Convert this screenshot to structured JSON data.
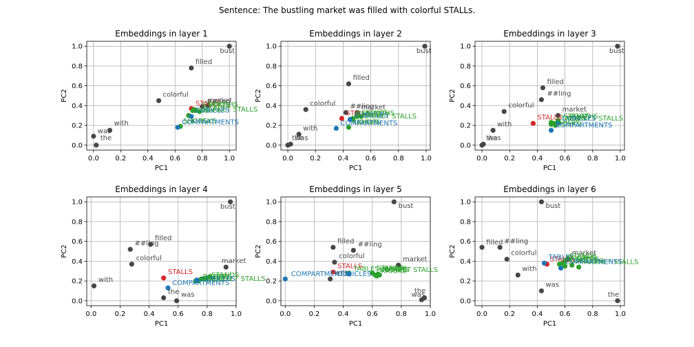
{
  "suptitle": "Sentence: The bustling market was filled with colorful STALLs.",
  "colors": {
    "token": "#474747",
    "target": "#d62728",
    "synonym": "#2ca02c",
    "related": "#1f77b4"
  },
  "chart_data": [
    {
      "type": "scatter",
      "title": "Embeddings in layer 1",
      "xlabel": "PC1",
      "ylabel": "PC2",
      "xlim": [
        -0.05,
        1.05
      ],
      "ylim": [
        -0.05,
        1.05
      ],
      "grid": true,
      "xticks": [
        "0.0",
        "0.2",
        "0.4",
        "0.6",
        "0.8",
        "1.0"
      ],
      "yticks": [
        "0.0",
        "0.2",
        "0.4",
        "0.6",
        "0.8",
        "1.0"
      ],
      "points": [
        {
          "label": "the",
          "x": 0.02,
          "y": 0.0,
          "group": "token",
          "lx": 0.05,
          "ly": 0.05
        },
        {
          "label": "was",
          "x": 0.0,
          "y": 0.09,
          "group": "token",
          "lx": 0.03,
          "ly": 0.12
        },
        {
          "label": "with",
          "x": 0.12,
          "y": 0.15,
          "group": "token",
          "lx": 0.15,
          "ly": 0.2
        },
        {
          "label": "colorful",
          "x": 0.48,
          "y": 0.45,
          "group": "token",
          "lx": 0.51,
          "ly": 0.49
        },
        {
          "label": "filled",
          "x": 0.72,
          "y": 0.78,
          "group": "token",
          "lx": 0.75,
          "ly": 0.82
        },
        {
          "label": "bust",
          "x": 1.0,
          "y": 1.0,
          "group": "token",
          "lx": 0.93,
          "ly": 0.93
        },
        {
          "label": "market",
          "x": 0.84,
          "y": 0.4,
          "group": "token",
          "lx": 0.84,
          "ly": 0.43
        },
        {
          "label": "##ling",
          "x": 0.8,
          "y": 0.39,
          "group": "token",
          "lx": 0.83,
          "ly": 0.42
        },
        {
          "label": "STALLS",
          "x": 0.72,
          "y": 0.37,
          "group": "target",
          "lx": 0.75,
          "ly": 0.4
        },
        {
          "label": "TABLES",
          "x": 0.75,
          "y": 0.35,
          "group": "synonym",
          "lx": 0.75,
          "ly": 0.33
        },
        {
          "label": "STANDS",
          "x": 0.74,
          "y": 0.36,
          "group": "synonym",
          "lx": 0.8,
          "ly": 0.39
        },
        {
          "label": "BOOTHS",
          "x": 0.73,
          "y": 0.35,
          "group": "synonym",
          "lx": 0.85,
          "ly": 0.39
        },
        {
          "label": "MARKET STALLS",
          "x": 0.78,
          "y": 0.34,
          "group": "synonym",
          "lx": 0.8,
          "ly": 0.34
        },
        {
          "label": "KIOSKS",
          "x": 0.7,
          "y": 0.3,
          "group": "synonym",
          "lx": 0.72,
          "ly": 0.22
        },
        {
          "label": "SHOPS",
          "x": 0.64,
          "y": 0.19,
          "group": "synonym",
          "lx": 0.66,
          "ly": 0.22
        },
        {
          "label": "CUBICLES",
          "x": 0.72,
          "y": 0.29,
          "group": "related",
          "lx": 0.75,
          "ly": 0.33
        },
        {
          "label": "COMPARTMENTS",
          "x": 0.62,
          "y": 0.18,
          "group": "related",
          "lx": 0.65,
          "ly": 0.21
        }
      ]
    },
    {
      "type": "scatter",
      "title": "Embeddings in layer 2",
      "xlabel": "PC1",
      "ylabel": "PC2",
      "xlim": [
        -0.05,
        1.03
      ],
      "ylim": [
        -0.05,
        1.05
      ],
      "grid": true,
      "xticks": [
        "0.0",
        "0.2",
        "0.4",
        "0.6",
        "0.8",
        "1.0"
      ],
      "yticks": [
        "0.0",
        "0.2",
        "0.4",
        "0.6",
        "0.8",
        "1.0"
      ],
      "points": [
        {
          "label": "the",
          "x": 0.0,
          "y": 0.0,
          "group": "token",
          "lx": 0.03,
          "ly": 0.05
        },
        {
          "label": "was",
          "x": 0.02,
          "y": 0.01,
          "group": "token",
          "lx": 0.05,
          "ly": 0.05
        },
        {
          "label": "with",
          "x": 0.08,
          "y": 0.11,
          "group": "token",
          "lx": 0.11,
          "ly": 0.15
        },
        {
          "label": "colorful",
          "x": 0.13,
          "y": 0.36,
          "group": "token",
          "lx": 0.16,
          "ly": 0.4
        },
        {
          "label": "filled",
          "x": 0.44,
          "y": 0.62,
          "group": "token",
          "lx": 0.47,
          "ly": 0.66
        },
        {
          "label": "bust",
          "x": 0.99,
          "y": 1.0,
          "group": "token",
          "lx": 0.93,
          "ly": 0.93
        },
        {
          "label": "market",
          "x": 0.5,
          "y": 0.33,
          "group": "token",
          "lx": 0.53,
          "ly": 0.36
        },
        {
          "label": "##ling",
          "x": 0.42,
          "y": 0.33,
          "group": "token",
          "lx": 0.45,
          "ly": 0.37
        },
        {
          "label": "STALLS",
          "x": 0.39,
          "y": 0.27,
          "group": "target",
          "lx": 0.42,
          "ly": 0.3
        },
        {
          "label": "TABLES",
          "x": 0.47,
          "y": 0.27,
          "group": "synonym",
          "lx": 0.5,
          "ly": 0.29
        },
        {
          "label": "STANDS",
          "x": 0.5,
          "y": 0.32,
          "group": "synonym",
          "lx": 0.53,
          "ly": 0.3
        },
        {
          "label": "BOOTHS",
          "x": 0.53,
          "y": 0.29,
          "group": "synonym",
          "lx": 0.56,
          "ly": 0.3
        },
        {
          "label": "MARKET STALLS",
          "x": 0.5,
          "y": 0.29,
          "group": "synonym",
          "lx": 0.53,
          "ly": 0.27
        },
        {
          "label": "KIOSKS",
          "x": 0.44,
          "y": 0.18,
          "group": "synonym",
          "lx": 0.47,
          "ly": 0.21
        },
        {
          "label": "SHOPS",
          "x": 0.47,
          "y": 0.26,
          "group": "synonym",
          "lx": 0.5,
          "ly": 0.21
        },
        {
          "label": "CUBICLES",
          "x": 0.45,
          "y": 0.26,
          "group": "related",
          "lx": 0.48,
          "ly": 0.28
        },
        {
          "label": "COMPARTMENTS",
          "x": 0.35,
          "y": 0.17,
          "group": "related",
          "lx": 0.38,
          "ly": 0.2
        }
      ]
    },
    {
      "type": "scatter",
      "title": "Embeddings in layer 3",
      "xlabel": "PC1",
      "ylabel": "PC2",
      "xlim": [
        -0.05,
        1.03
      ],
      "ylim": [
        -0.05,
        1.05
      ],
      "grid": true,
      "xticks": [
        "0.0",
        "0.2",
        "0.4",
        "0.6",
        "0.8",
        "1.0"
      ],
      "yticks": [
        "0.0",
        "0.2",
        "0.4",
        "0.6",
        "0.8",
        "1.0"
      ],
      "points": [
        {
          "label": "the",
          "x": 0.0,
          "y": 0.0,
          "group": "token",
          "lx": 0.03,
          "ly": 0.05
        },
        {
          "label": "was",
          "x": 0.01,
          "y": 0.01,
          "group": "token",
          "lx": 0.04,
          "ly": 0.05
        },
        {
          "label": "with",
          "x": 0.08,
          "y": 0.15,
          "group": "token",
          "lx": 0.11,
          "ly": 0.19
        },
        {
          "label": "colorful",
          "x": 0.16,
          "y": 0.34,
          "group": "token",
          "lx": 0.19,
          "ly": 0.38
        },
        {
          "label": "filled",
          "x": 0.44,
          "y": 0.58,
          "group": "token",
          "lx": 0.47,
          "ly": 0.62
        },
        {
          "label": "##ling",
          "x": 0.43,
          "y": 0.46,
          "group": "token",
          "lx": 0.47,
          "ly": 0.5
        },
        {
          "label": "bust",
          "x": 0.98,
          "y": 1.0,
          "group": "token",
          "lx": 0.92,
          "ly": 0.93
        },
        {
          "label": "market",
          "x": 0.55,
          "y": 0.3,
          "group": "token",
          "lx": 0.58,
          "ly": 0.34
        },
        {
          "label": "STALLS",
          "x": 0.37,
          "y": 0.22,
          "group": "target",
          "lx": 0.4,
          "ly": 0.26
        },
        {
          "label": "TABLES",
          "x": 0.55,
          "y": 0.24,
          "group": "synonym",
          "lx": 0.57,
          "ly": 0.25
        },
        {
          "label": "STANDS",
          "x": 0.5,
          "y": 0.21,
          "group": "synonym",
          "lx": 0.59,
          "ly": 0.27
        },
        {
          "label": "BOOTHS",
          "x": 0.53,
          "y": 0.2,
          "group": "synonym",
          "lx": 0.63,
          "ly": 0.27
        },
        {
          "label": "MARKET STALLS",
          "x": 0.55,
          "y": 0.25,
          "group": "synonym",
          "lx": 0.62,
          "ly": 0.25
        },
        {
          "label": "KIOSKS",
          "x": 0.5,
          "y": 0.23,
          "group": "synonym",
          "lx": 0.53,
          "ly": 0.19
        },
        {
          "label": "SHOPS",
          "x": 0.52,
          "y": 0.22,
          "group": "synonym",
          "lx": 0.55,
          "ly": 0.21
        },
        {
          "label": "CUBICLES",
          "x": 0.55,
          "y": 0.22,
          "group": "related",
          "lx": 0.58,
          "ly": 0.25
        },
        {
          "label": "COMPARTMENTS",
          "x": 0.5,
          "y": 0.15,
          "group": "related",
          "lx": 0.53,
          "ly": 0.18
        }
      ]
    },
    {
      "type": "scatter",
      "title": "Embeddings in layer 4",
      "xlabel": "PC1",
      "ylabel": "PC2",
      "xlim": [
        -0.03,
        1.0
      ],
      "ylim": [
        -0.05,
        1.05
      ],
      "grid": true,
      "xticks": [
        "0.0",
        "0.2",
        "0.4",
        "0.6",
        "0.8",
        "1.0"
      ],
      "yticks": [
        "0.0",
        "0.2",
        "0.4",
        "0.6",
        "0.8",
        "1.0"
      ],
      "points": [
        {
          "label": "with",
          "x": 0.02,
          "y": 0.15,
          "group": "token",
          "lx": 0.05,
          "ly": 0.19
        },
        {
          "label": "colorful",
          "x": 0.28,
          "y": 0.37,
          "group": "token",
          "lx": 0.31,
          "ly": 0.41
        },
        {
          "label": "##ling",
          "x": 0.27,
          "y": 0.52,
          "group": "token",
          "lx": 0.3,
          "ly": 0.56
        },
        {
          "label": "filled",
          "x": 0.41,
          "y": 0.57,
          "group": "token",
          "lx": 0.44,
          "ly": 0.61
        },
        {
          "label": "the",
          "x": 0.5,
          "y": 0.03,
          "group": "token",
          "lx": 0.53,
          "ly": 0.07
        },
        {
          "label": "was",
          "x": 0.59,
          "y": 0.0,
          "group": "token",
          "lx": 0.62,
          "ly": 0.04
        },
        {
          "label": "bust",
          "x": 0.96,
          "y": 1.0,
          "group": "token",
          "lx": 0.89,
          "ly": 0.93
        },
        {
          "label": "market",
          "x": 0.93,
          "y": 0.34,
          "group": "token",
          "lx": 0.9,
          "ly": 0.38
        },
        {
          "label": "STALLS",
          "x": 0.5,
          "y": 0.23,
          "group": "target",
          "lx": 0.53,
          "ly": 0.27
        },
        {
          "label": "TABLES",
          "x": 0.76,
          "y": 0.22,
          "group": "synonym",
          "lx": 0.79,
          "ly": 0.2
        },
        {
          "label": "STANDS",
          "x": 0.8,
          "y": 0.23,
          "group": "synonym",
          "lx": 0.83,
          "ly": 0.24
        },
        {
          "label": "BOOTHS",
          "x": 0.74,
          "y": 0.2,
          "group": "synonym",
          "lx": 0.77,
          "ly": 0.22
        },
        {
          "label": "MARKET STALLS",
          "x": 0.82,
          "y": 0.24,
          "group": "synonym",
          "lx": 0.82,
          "ly": 0.2
        },
        {
          "label": "KIOSKS",
          "x": 0.72,
          "y": 0.2,
          "group": "synonym",
          "lx": 0.75,
          "ly": 0.19
        },
        {
          "label": "SHOPS",
          "x": 0.78,
          "y": 0.22,
          "group": "synonym",
          "lx": 0.81,
          "ly": 0.22
        },
        {
          "label": "CUBICLES",
          "x": 0.73,
          "y": 0.21,
          "group": "related",
          "lx": 0.76,
          "ly": 0.2
        },
        {
          "label": "COMPARTMENTS",
          "x": 0.53,
          "y": 0.13,
          "group": "related",
          "lx": 0.56,
          "ly": 0.16
        }
      ]
    },
    {
      "type": "scatter",
      "title": "Embeddings in layer 5",
      "xlabel": "PC1",
      "ylabel": "PC2",
      "xlim": [
        -0.03,
        1.0
      ],
      "ylim": [
        -0.05,
        1.05
      ],
      "grid": true,
      "xticks": [
        "0.0",
        "0.2",
        "0.4",
        "0.6",
        "0.8",
        "1.0"
      ],
      "yticks": [
        "0.0",
        "0.2",
        "0.4",
        "0.6",
        "0.8",
        "1.0"
      ],
      "points": [
        {
          "label": "filled",
          "x": 0.33,
          "y": 0.54,
          "group": "token",
          "lx": 0.36,
          "ly": 0.58
        },
        {
          "label": "##ling",
          "x": 0.47,
          "y": 0.51,
          "group": "token",
          "lx": 0.5,
          "ly": 0.55
        },
        {
          "label": "colorful",
          "x": 0.34,
          "y": 0.39,
          "group": "token",
          "lx": 0.37,
          "ly": 0.43
        },
        {
          "label": "market",
          "x": 0.78,
          "y": 0.36,
          "group": "token",
          "lx": 0.81,
          "ly": 0.4
        },
        {
          "label": "with",
          "x": 0.31,
          "y": 0.22,
          "group": "token",
          "lx": 0.34,
          "ly": 0.26
        },
        {
          "label": "bust",
          "x": 0.75,
          "y": 1.0,
          "group": "token",
          "lx": 0.78,
          "ly": 0.94
        },
        {
          "label": "the",
          "x": 0.96,
          "y": 0.03,
          "group": "token",
          "lx": 0.89,
          "ly": 0.08
        },
        {
          "label": "was",
          "x": 0.94,
          "y": 0.01,
          "group": "token",
          "lx": 0.87,
          "ly": 0.04
        },
        {
          "label": "STALLS",
          "x": 0.33,
          "y": 0.29,
          "group": "target",
          "lx": 0.36,
          "ly": 0.33
        },
        {
          "label": "TABLES",
          "x": 0.44,
          "y": 0.28,
          "group": "synonym",
          "lx": 0.47,
          "ly": 0.3
        },
        {
          "label": "STANDS",
          "x": 0.6,
          "y": 0.28,
          "group": "synonym",
          "lx": 0.63,
          "ly": 0.31
        },
        {
          "label": "BOOTHS",
          "x": 0.62,
          "y": 0.26,
          "group": "synonym",
          "lx": 0.65,
          "ly": 0.29
        },
        {
          "label": "MARKET STALLS",
          "x": 0.64,
          "y": 0.27,
          "group": "synonym",
          "lx": 0.67,
          "ly": 0.29
        },
        {
          "label": "KIOSKS",
          "x": 0.63,
          "y": 0.25,
          "group": "synonym",
          "lx": 0.66,
          "ly": 0.28
        },
        {
          "label": "SHOPS",
          "x": 0.65,
          "y": 0.26,
          "group": "synonym",
          "lx": 0.68,
          "ly": 0.3
        },
        {
          "label": "CUBICLES",
          "x": 0.44,
          "y": 0.27,
          "group": "related",
          "lx": 0.36,
          "ly": 0.25
        },
        {
          "label": "COMPARTMENTS",
          "x": 0.0,
          "y": 0.22,
          "group": "related",
          "lx": 0.04,
          "ly": 0.25
        }
      ]
    },
    {
      "type": "scatter",
      "title": "Embeddings in layer 6",
      "xlabel": "PC1",
      "ylabel": "PC2",
      "xlim": [
        -0.05,
        1.03
      ],
      "ylim": [
        -0.05,
        1.05
      ],
      "grid": true,
      "xticks": [
        "0.0",
        "0.2",
        "0.4",
        "0.6",
        "0.8",
        "1.0"
      ],
      "yticks": [
        "0.0",
        "0.2",
        "0.4",
        "0.6",
        "0.8",
        "1.0"
      ],
      "points": [
        {
          "label": "filled",
          "x": 0.0,
          "y": 0.54,
          "group": "token",
          "lx": 0.03,
          "ly": 0.57
        },
        {
          "label": "##ling",
          "x": 0.13,
          "y": 0.54,
          "group": "token",
          "lx": 0.16,
          "ly": 0.58
        },
        {
          "label": "colorful",
          "x": 0.18,
          "y": 0.42,
          "group": "token",
          "lx": 0.21,
          "ly": 0.46
        },
        {
          "label": "with",
          "x": 0.26,
          "y": 0.26,
          "group": "token",
          "lx": 0.29,
          "ly": 0.3
        },
        {
          "label": "was",
          "x": 0.43,
          "y": 0.1,
          "group": "token",
          "lx": 0.46,
          "ly": 0.14
        },
        {
          "label": "bust",
          "x": 0.43,
          "y": 1.0,
          "group": "token",
          "lx": 0.46,
          "ly": 0.94
        },
        {
          "label": "the",
          "x": 0.98,
          "y": 0.0,
          "group": "token",
          "lx": 0.91,
          "ly": 0.04
        },
        {
          "label": "market",
          "x": 0.62,
          "y": 0.42,
          "group": "token",
          "lx": 0.65,
          "ly": 0.46
        },
        {
          "label": "STALLS",
          "x": 0.47,
          "y": 0.37,
          "group": "target",
          "lx": 0.49,
          "ly": 0.4
        },
        {
          "label": "TABLES",
          "x": 0.45,
          "y": 0.38,
          "group": "related",
          "lx": 0.48,
          "ly": 0.42
        },
        {
          "label": "STANDS",
          "x": 0.6,
          "y": 0.4,
          "group": "synonym",
          "lx": 0.63,
          "ly": 0.43
        },
        {
          "label": "BOOTHS",
          "x": 0.58,
          "y": 0.38,
          "group": "synonym",
          "lx": 0.61,
          "ly": 0.41
        },
        {
          "label": "MARKET STALLS",
          "x": 0.7,
          "y": 0.34,
          "group": "synonym",
          "lx": 0.73,
          "ly": 0.37
        },
        {
          "label": "KIOSKS",
          "x": 0.56,
          "y": 0.37,
          "group": "synonym",
          "lx": 0.59,
          "ly": 0.39
        },
        {
          "label": "SHOPS",
          "x": 0.65,
          "y": 0.36,
          "group": "synonym",
          "lx": 0.68,
          "ly": 0.4
        },
        {
          "label": "CUBICLES",
          "x": 0.6,
          "y": 0.35,
          "group": "synonym",
          "lx": 0.63,
          "ly": 0.38
        },
        {
          "label": "COMPARTMENTS",
          "x": 0.57,
          "y": 0.33,
          "group": "related",
          "lx": 0.6,
          "ly": 0.37
        }
      ]
    }
  ]
}
